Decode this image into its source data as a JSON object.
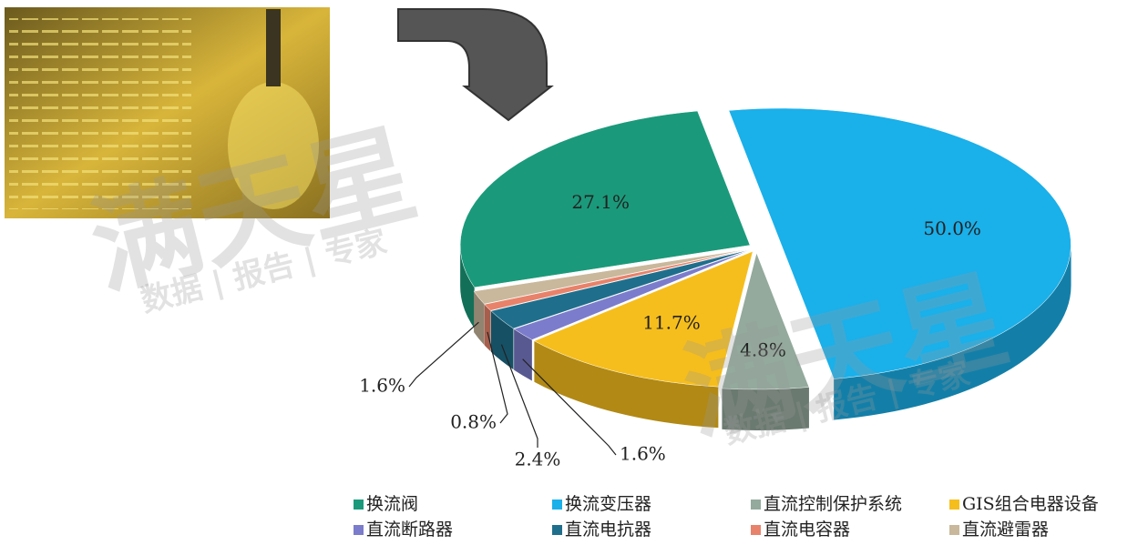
{
  "chart_data": {
    "type": "pie",
    "categories": [
      "换流阀",
      "换流变压器",
      "直流控制保护系统",
      "GIS组合电器设备",
      "直流断路器",
      "直流电抗器",
      "直流电容器",
      "直流避雷器"
    ],
    "values": [
      27.1,
      50.0,
      4.8,
      11.7,
      1.6,
      2.4,
      0.8,
      1.6
    ],
    "value_labels": [
      "27.1%",
      "50.0%",
      "4.8%",
      "11.7%",
      "1.6%",
      "2.4%",
      "0.8%",
      "1.6%"
    ],
    "colors": [
      "#1a9a7a",
      "#1ab0ea",
      "#93aa9c",
      "#f6be1c",
      "#7b7ccb",
      "#1f6f8c",
      "#e8826a",
      "#c9b89b"
    ],
    "legend": "bottom"
  },
  "watermark": {
    "brand": "满天星",
    "tagline": "数据 | 报告 | 专家"
  }
}
